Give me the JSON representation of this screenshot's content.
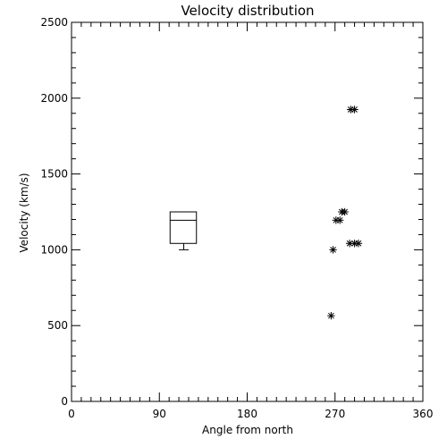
{
  "chart_data": {
    "type": "scatter",
    "title": "Velocity distribution",
    "xlabel": "Angle from north",
    "ylabel": "Velocity (km/s)",
    "xlim": [
      0,
      360
    ],
    "ylim": [
      0,
      2500
    ],
    "xticks": [
      "0",
      "90",
      "180",
      "270",
      "360"
    ],
    "xtick_values": [
      0,
      90,
      180,
      270,
      360
    ],
    "yticks": [
      "0",
      "500",
      "1000",
      "1500",
      "2000",
      "2500"
    ],
    "ytick_values": [
      0,
      500,
      1000,
      1500,
      2000,
      2500
    ],
    "grid": false,
    "marker": "asterisk",
    "points": [
      {
        "x": 266,
        "y": 565
      },
      {
        "x": 268,
        "y": 1000
      },
      {
        "x": 271,
        "y": 1195
      },
      {
        "x": 275,
        "y": 1195
      },
      {
        "x": 277,
        "y": 1250
      },
      {
        "x": 280,
        "y": 1250
      },
      {
        "x": 285,
        "y": 1042
      },
      {
        "x": 290,
        "y": 1042
      },
      {
        "x": 294,
        "y": 1042
      },
      {
        "x": 286,
        "y": 1925
      },
      {
        "x": 290,
        "y": 1925
      }
    ],
    "boxplot": {
      "x_left": 101,
      "x_right": 128,
      "whisker_x_left": 110,
      "whisker_x_right": 120,
      "min": 1000,
      "q1": 1042,
      "median": 1195,
      "q3": 1250,
      "max": 1250
    }
  }
}
